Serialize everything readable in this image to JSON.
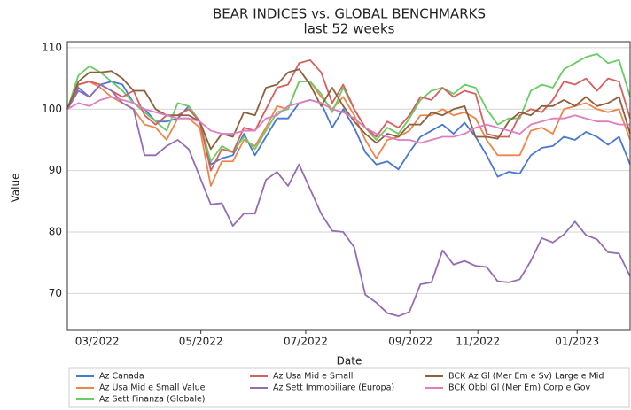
{
  "chart_data": {
    "type": "line",
    "title": "BEAR INDICES vs. GLOBAL BENCHMARKS",
    "subtitle": "last 52 weeks",
    "x_label": "Date",
    "y_label": "Value",
    "x": [
      0,
      1,
      2,
      3,
      4,
      5,
      6,
      7,
      8,
      9,
      10,
      11,
      12,
      13,
      14,
      15,
      16,
      17,
      18,
      19,
      20,
      21,
      22,
      23,
      24,
      25,
      26,
      27,
      28,
      29,
      30,
      31,
      32,
      33,
      34,
      35,
      36,
      37,
      38,
      39,
      40,
      41,
      42,
      43,
      44,
      45,
      46,
      47,
      48,
      49,
      50,
      51
    ],
    "xlim": [
      0,
      51
    ],
    "xticks": [
      {
        "value": 2.7,
        "label": "03/2022"
      },
      {
        "value": 12.1,
        "label": "05/2022"
      },
      {
        "value": 21.6,
        "label": "07/2022"
      },
      {
        "value": 31.1,
        "label": "09/2022"
      },
      {
        "value": 37.2,
        "label": "11/2022"
      },
      {
        "value": 46.2,
        "label": "01/2023"
      }
    ],
    "ylim": [
      64,
      111
    ],
    "yticks": [
      70,
      80,
      90,
      100,
      110
    ],
    "grid": true,
    "legend": "bottom",
    "series": [
      {
        "name": "Az Canada",
        "color": "#4878d0",
        "values": [
          100,
          103.5,
          102,
          104,
          104.5,
          104,
          101,
          100,
          98,
          98,
          98.5,
          100.5,
          98,
          91,
          92,
          92.5,
          96,
          92.5,
          95.5,
          98.5,
          98.5,
          101,
          101.5,
          101,
          97,
          100,
          97,
          93,
          91,
          91.5,
          90.2,
          93,
          95.5,
          96.5,
          97.5,
          96,
          97.8,
          95.5,
          92.5,
          89,
          89.8,
          89.5,
          92.5,
          93.7,
          94,
          95.5,
          95,
          96.3,
          95.5,
          94.2,
          95.5,
          91
        ]
      },
      {
        "name": "Az Usa Mid e Small Value",
        "color": "#ee854a",
        "values": [
          100,
          104,
          104.5,
          103.5,
          102,
          101,
          100,
          97.5,
          97,
          95,
          98.5,
          98.5,
          97,
          87.5,
          91.5,
          91.5,
          95,
          94,
          97,
          100.5,
          100,
          104.5,
          104.5,
          102,
          100,
          102,
          99,
          95,
          92,
          95,
          95.5,
          96.5,
          99,
          99,
          100,
          99,
          99.5,
          98.5,
          95,
          92.5,
          92.5,
          92.5,
          96.5,
          97,
          96,
          100,
          100.5,
          101,
          100,
          99.5,
          100,
          95
        ]
      },
      {
        "name": "Az Sett Finanza (Globale)",
        "color": "#6acc64",
        "values": [
          100,
          105.5,
          107,
          106,
          104.5,
          103,
          101,
          99.5,
          98,
          96.5,
          101,
          100.5,
          98,
          91.5,
          94,
          93,
          95.5,
          93.5,
          96.5,
          99.5,
          100,
          104.5,
          104.5,
          102.5,
          99.5,
          103.5,
          100,
          97,
          95,
          97,
          96,
          98.5,
          101.5,
          103,
          103.5,
          102.5,
          104,
          103.5,
          100,
          97.5,
          98.5,
          98.5,
          103,
          104,
          103.5,
          106.5,
          107.5,
          108.5,
          109,
          107.5,
          108,
          102
        ]
      },
      {
        "name": "Az Usa Mid e Small",
        "color": "#d65f5f",
        "values": [
          100,
          104,
          104.5,
          104,
          103,
          102,
          103,
          99,
          97.5,
          99,
          99,
          100,
          98,
          90,
          93.5,
          93,
          97,
          96.5,
          100,
          103.5,
          104,
          107.5,
          108,
          106,
          101,
          104,
          100,
          97,
          95.5,
          98,
          97,
          99,
          102,
          101.5,
          103.5,
          102,
          103,
          102.5,
          96,
          95.5,
          95.5,
          99,
          100,
          99.5,
          101.5,
          104.5,
          104,
          105,
          103,
          105,
          104.5,
          98.5
        ]
      },
      {
        "name": "Az Sett Immobiliare (Europa)",
        "color": "#956cb4",
        "values": [
          100,
          103,
          102,
          104,
          103,
          101,
          100,
          92.5,
          92.5,
          94,
          95,
          93.5,
          89,
          84.5,
          84.7,
          81,
          83,
          83,
          88.5,
          89.8,
          87.5,
          91,
          87,
          83,
          80.2,
          80,
          77.5,
          69.8,
          68.5,
          66.8,
          66.3,
          67,
          71.5,
          71.8,
          77,
          74.7,
          75.3,
          74.5,
          74.3,
          72,
          71.8,
          72.3,
          75.3,
          79,
          78.3,
          79.6,
          81.7,
          79.5,
          78.8,
          76.7,
          76.5,
          72.8
        ]
      },
      {
        "name": "BCK Az Gl (Mer Em e Sv) Large e Mid",
        "color": "#8c613c",
        "values": [
          100,
          104.5,
          106,
          106,
          106.2,
          105,
          103,
          103,
          100,
          99,
          99,
          99,
          98,
          93.5,
          96,
          95.5,
          99.5,
          99,
          103.5,
          104,
          106,
          106.5,
          104,
          100.5,
          103.5,
          100.5,
          98,
          96,
          94.5,
          96,
          95.5,
          97.5,
          97.5,
          99.5,
          99,
          100,
          100.5,
          95.5,
          95.5,
          95.2,
          98,
          99.5,
          99,
          100.5,
          100.5,
          101.5,
          100.5,
          102,
          100.5,
          101,
          102,
          96
        ]
      },
      {
        "name": "BCK Obbl Gl (Mer Em) Corp e Gov",
        "color": "#dc7ec0",
        "values": [
          100,
          101,
          100.5,
          101.5,
          102,
          101.5,
          101,
          100,
          99.5,
          99,
          98.5,
          98.5,
          98,
          96.5,
          96,
          96,
          96.5,
          96.5,
          98.5,
          99,
          100.5,
          101,
          101.5,
          101,
          100,
          99.5,
          98.5,
          97,
          96,
          95.5,
          95,
          95,
          94.5,
          95,
          95.5,
          95.5,
          96,
          97,
          97.5,
          97,
          96.5,
          96,
          97.5,
          98,
          98.5,
          98.5,
          99,
          98.5,
          98,
          98,
          97.5,
          97.5
        ]
      }
    ]
  }
}
